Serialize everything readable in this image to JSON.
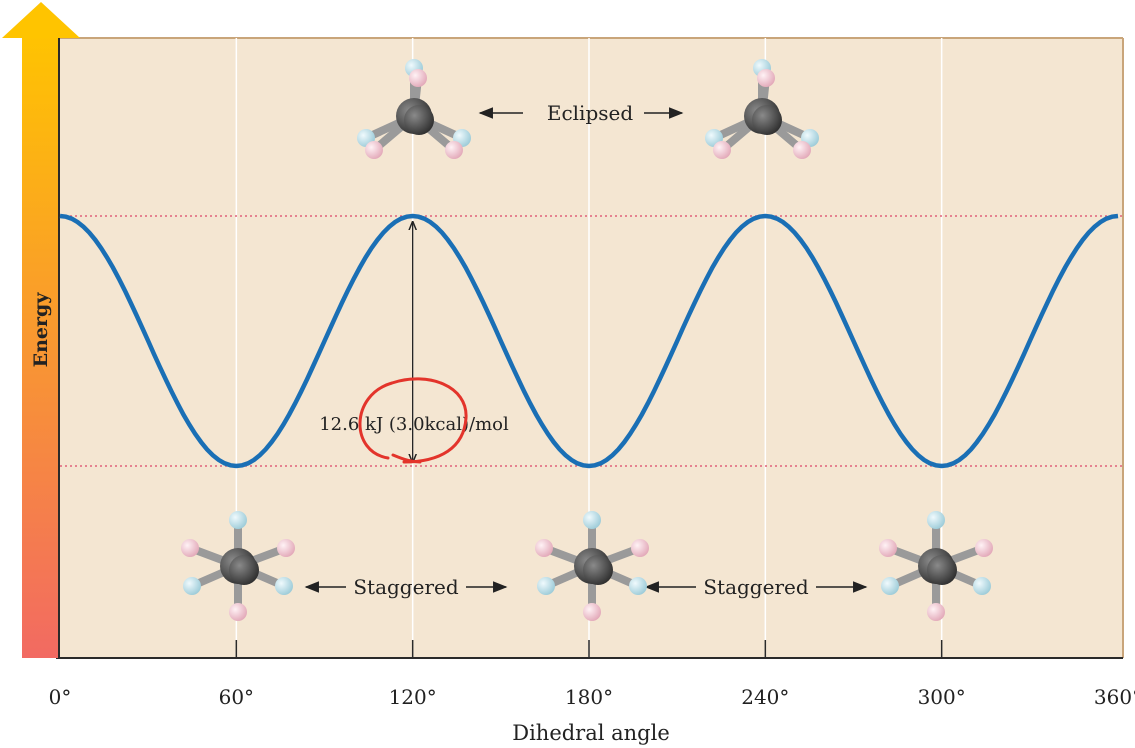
{
  "chart_data": {
    "type": "line",
    "title": "",
    "xlabel": "Dihedral angle",
    "ylabel": "Energy",
    "xlim": [
      0,
      360
    ],
    "ylim": [
      0,
      12.6
    ],
    "grid": true,
    "x_ticks": [
      "0°",
      "60°",
      "120°",
      "180°",
      "240°",
      "300°",
      "360°"
    ],
    "series": [
      {
        "x": [
          0,
          30,
          60,
          90,
          120,
          150,
          180,
          210,
          240,
          270,
          300,
          330,
          360
        ],
        "y": [
          12.6,
          6.3,
          0,
          6.3,
          12.6,
          6.3,
          0,
          6.3,
          12.6,
          6.3,
          0,
          6.3,
          12.6
        ]
      }
    ],
    "energy_barrier_label": "12.6 kJ (3.0kcal)/mol",
    "annotations": {
      "eclipsed": "Eclipsed",
      "staggered_1": "Staggered",
      "staggered_2": "Staggered"
    },
    "colors": {
      "curve": "#1a6fb5",
      "plot_background": "#f4e6d2",
      "axis_frame": "#c9a57a",
      "reference_lines": "#e0607a",
      "energy_arrow_top": "#ffc400",
      "energy_arrow_bottom": "#f26a62",
      "handwritten_circle": "#e3342b",
      "molecule_carbon": "#4a4a4a",
      "molecule_h_blue": "#b9dde6",
      "molecule_h_pink": "#f1c9d3"
    }
  }
}
